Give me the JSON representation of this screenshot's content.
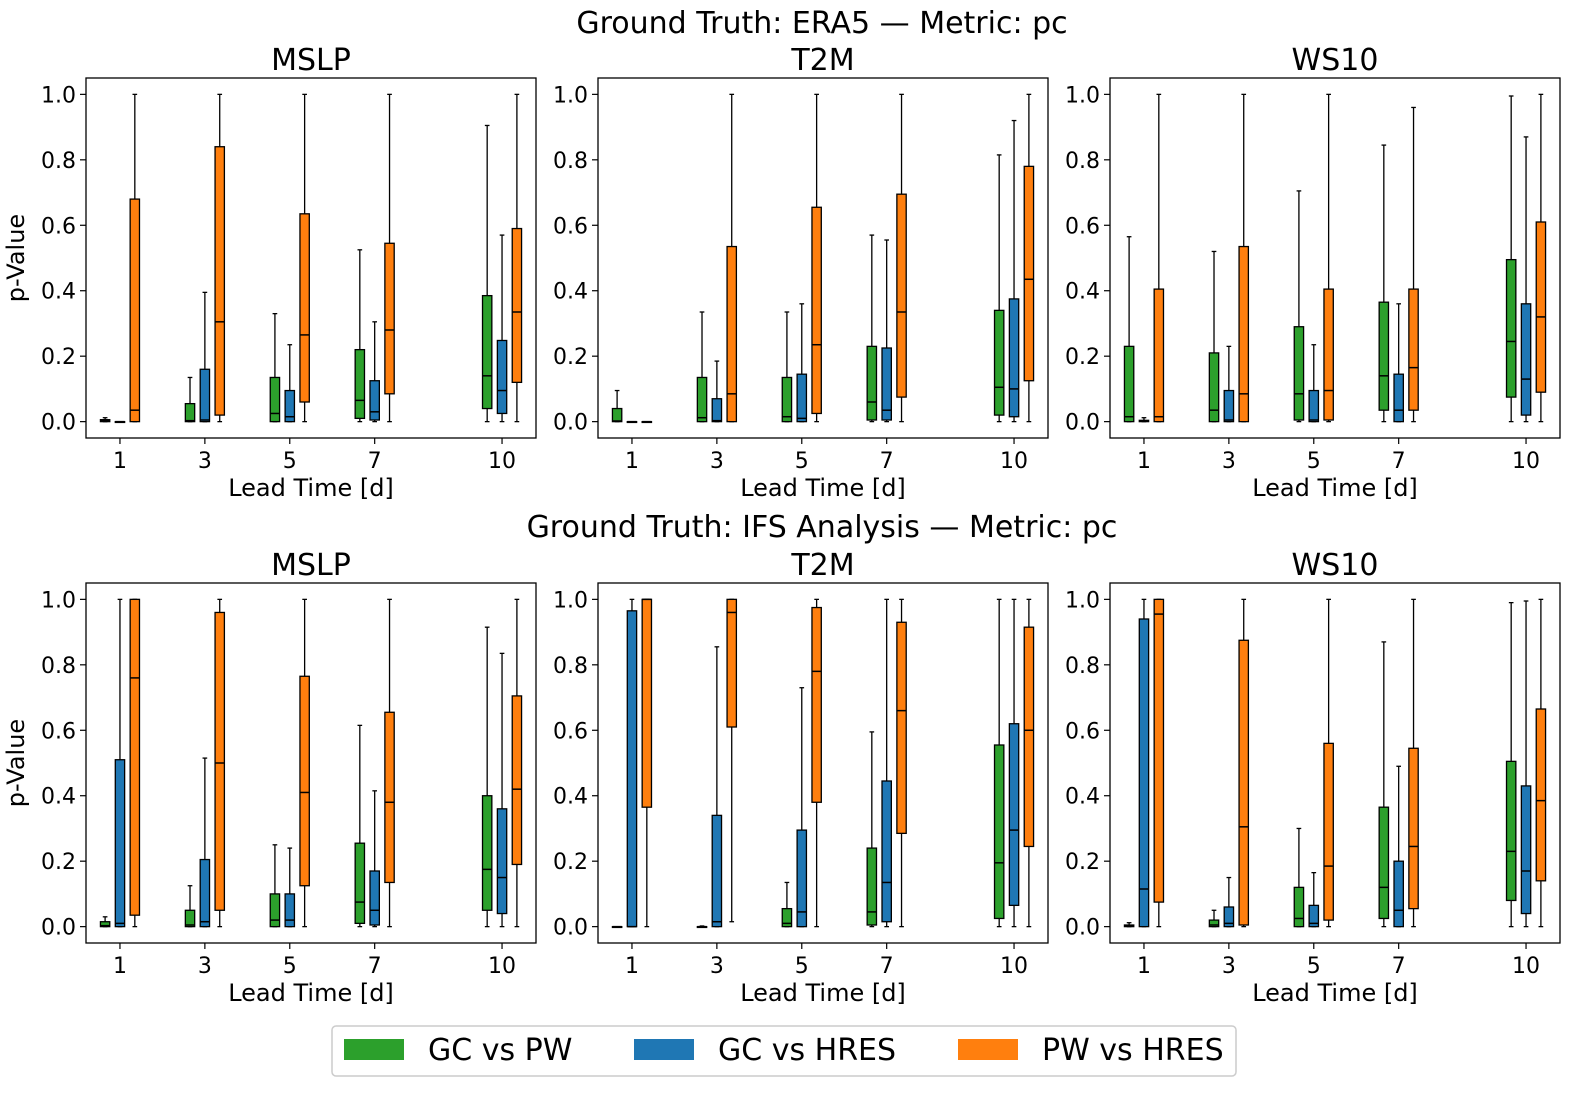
{
  "colors": {
    "GC vs PW": "#2ca02c",
    "GC vs HRES": "#1f77b4",
    "PW vs HRES": "#ff7f0e"
  },
  "legend": {
    "items": [
      "GC vs PW",
      "GC vs HRES",
      "PW vs HRES"
    ],
    "placement": "bottom-center"
  },
  "chart_data": [
    {
      "type": "box",
      "suptitle": "Ground Truth: ERA5 — Metric: pc",
      "title": "MSLP",
      "xlabel": "Lead Time [d]",
      "ylabel": "p-Value",
      "ylim": [
        -0.05,
        1.05
      ],
      "yticks": [
        "0.0",
        "0.2",
        "0.4",
        "0.6",
        "0.8",
        "1.0"
      ],
      "categories": [
        "1",
        "3",
        "5",
        "7",
        "10"
      ],
      "series": [
        {
          "name": "GC vs PW",
          "boxes": [
            {
              "whislo": 0,
              "q1": 0.0,
              "med": 0.003,
              "q3": 0.006,
              "whishi": 0.012
            },
            {
              "whislo": 0,
              "q1": 0.0,
              "med": 0.003,
              "q3": 0.055,
              "whishi": 0.135
            },
            {
              "whislo": 0,
              "q1": 0.0,
              "med": 0.025,
              "q3": 0.135,
              "whishi": 0.33
            },
            {
              "whislo": 0,
              "q1": 0.01,
              "med": 0.065,
              "q3": 0.22,
              "whishi": 0.525
            },
            {
              "whislo": 0,
              "q1": 0.04,
              "med": 0.14,
              "q3": 0.385,
              "whishi": 0.905
            }
          ]
        },
        {
          "name": "GC vs HRES",
          "boxes": [
            {
              "whislo": 0,
              "q1": 0.0,
              "med": 0.0,
              "q3": 0.0,
              "whishi": 0.0
            },
            {
              "whislo": 0,
              "q1": 0.0,
              "med": 0.005,
              "q3": 0.16,
              "whishi": 0.395
            },
            {
              "whislo": 0,
              "q1": 0.0,
              "med": 0.015,
              "q3": 0.095,
              "whishi": 0.235
            },
            {
              "whislo": 0,
              "q1": 0.005,
              "med": 0.03,
              "q3": 0.125,
              "whishi": 0.305
            },
            {
              "whislo": 0,
              "q1": 0.025,
              "med": 0.095,
              "q3": 0.248,
              "whishi": 0.57
            }
          ]
        },
        {
          "name": "PW vs HRES",
          "boxes": [
            {
              "whislo": 0,
              "q1": 0.0,
              "med": 0.035,
              "q3": 0.68,
              "whishi": 1.0
            },
            {
              "whislo": 0,
              "q1": 0.02,
              "med": 0.305,
              "q3": 0.84,
              "whishi": 1.0
            },
            {
              "whislo": 0,
              "q1": 0.06,
              "med": 0.265,
              "q3": 0.635,
              "whishi": 1.0
            },
            {
              "whislo": 0,
              "q1": 0.085,
              "med": 0.28,
              "q3": 0.545,
              "whishi": 1.0
            },
            {
              "whislo": 0,
              "q1": 0.12,
              "med": 0.335,
              "q3": 0.59,
              "whishi": 1.0
            }
          ]
        }
      ]
    },
    {
      "type": "box",
      "title": "T2M",
      "xlabel": "Lead Time [d]",
      "ylabel": "",
      "ylim": [
        -0.05,
        1.05
      ],
      "yticks": [
        "0.0",
        "0.2",
        "0.4",
        "0.6",
        "0.8",
        "1.0"
      ],
      "categories": [
        "1",
        "3",
        "5",
        "7",
        "10"
      ],
      "series": [
        {
          "name": "GC vs PW",
          "boxes": [
            {
              "whislo": 0,
              "q1": 0.0,
              "med": 0.002,
              "q3": 0.04,
              "whishi": 0.095
            },
            {
              "whislo": 0,
              "q1": 0.0,
              "med": 0.012,
              "q3": 0.135,
              "whishi": 0.335
            },
            {
              "whislo": 0,
              "q1": 0.0,
              "med": 0.015,
              "q3": 0.135,
              "whishi": 0.335
            },
            {
              "whislo": 0,
              "q1": 0.005,
              "med": 0.06,
              "q3": 0.23,
              "whishi": 0.57
            },
            {
              "whislo": 0,
              "q1": 0.02,
              "med": 0.105,
              "q3": 0.34,
              "whishi": 0.815
            }
          ]
        },
        {
          "name": "GC vs HRES",
          "boxes": [
            {
              "whislo": 0,
              "q1": 0.0,
              "med": 0.0,
              "q3": 0.0,
              "whishi": 0.0
            },
            {
              "whislo": 0,
              "q1": 0.0,
              "med": 0.003,
              "q3": 0.07,
              "whishi": 0.185
            },
            {
              "whislo": 0,
              "q1": 0.0,
              "med": 0.01,
              "q3": 0.145,
              "whishi": 0.36
            },
            {
              "whislo": 0,
              "q1": 0.005,
              "med": 0.035,
              "q3": 0.225,
              "whishi": 0.555
            },
            {
              "whislo": 0,
              "q1": 0.015,
              "med": 0.1,
              "q3": 0.375,
              "whishi": 0.92
            }
          ]
        },
        {
          "name": "PW vs HRES",
          "boxes": [
            {
              "whislo": 0,
              "q1": 0.0,
              "med": 0.0,
              "q3": 0.0,
              "whishi": 0.0
            },
            {
              "whislo": 0,
              "q1": 0.0,
              "med": 0.085,
              "q3": 0.535,
              "whishi": 1.0
            },
            {
              "whislo": 0,
              "q1": 0.025,
              "med": 0.235,
              "q3": 0.655,
              "whishi": 1.0
            },
            {
              "whislo": 0,
              "q1": 0.075,
              "med": 0.335,
              "q3": 0.695,
              "whishi": 1.0
            },
            {
              "whislo": 0,
              "q1": 0.125,
              "med": 0.435,
              "q3": 0.78,
              "whishi": 1.0
            }
          ]
        }
      ]
    },
    {
      "type": "box",
      "title": "WS10",
      "xlabel": "Lead Time [d]",
      "ylabel": "",
      "ylim": [
        -0.05,
        1.05
      ],
      "yticks": [
        "0.0",
        "0.2",
        "0.4",
        "0.6",
        "0.8",
        "1.0"
      ],
      "categories": [
        "1",
        "3",
        "5",
        "7",
        "10"
      ],
      "series": [
        {
          "name": "GC vs PW",
          "boxes": [
            {
              "whislo": 0,
              "q1": 0.0,
              "med": 0.015,
              "q3": 0.23,
              "whishi": 0.565
            },
            {
              "whislo": 0,
              "q1": 0.0,
              "med": 0.035,
              "q3": 0.21,
              "whishi": 0.52
            },
            {
              "whislo": 0,
              "q1": 0.005,
              "med": 0.085,
              "q3": 0.29,
              "whishi": 0.705
            },
            {
              "whislo": 0,
              "q1": 0.035,
              "med": 0.14,
              "q3": 0.365,
              "whishi": 0.845
            },
            {
              "whislo": 0,
              "q1": 0.075,
              "med": 0.245,
              "q3": 0.495,
              "whishi": 0.995
            }
          ]
        },
        {
          "name": "GC vs HRES",
          "boxes": [
            {
              "whislo": 0,
              "q1": 0.0,
              "med": 0.002,
              "q3": 0.004,
              "whishi": 0.012
            },
            {
              "whislo": 0,
              "q1": 0.0,
              "med": 0.005,
              "q3": 0.095,
              "whishi": 0.23
            },
            {
              "whislo": 0,
              "q1": 0.0,
              "med": 0.005,
              "q3": 0.095,
              "whishi": 0.235
            },
            {
              "whislo": 0,
              "q1": 0.0,
              "med": 0.035,
              "q3": 0.145,
              "whishi": 0.36
            },
            {
              "whislo": 0,
              "q1": 0.02,
              "med": 0.13,
              "q3": 0.36,
              "whishi": 0.87
            }
          ]
        },
        {
          "name": "PW vs HRES",
          "boxes": [
            {
              "whislo": 0,
              "q1": 0.0,
              "med": 0.015,
              "q3": 0.405,
              "whishi": 1.0
            },
            {
              "whislo": 0,
              "q1": 0.0,
              "med": 0.085,
              "q3": 0.535,
              "whishi": 1.0
            },
            {
              "whislo": 0,
              "q1": 0.005,
              "med": 0.095,
              "q3": 0.405,
              "whishi": 1.0
            },
            {
              "whislo": 0,
              "q1": 0.035,
              "med": 0.165,
              "q3": 0.405,
              "whishi": 0.96
            },
            {
              "whislo": 0,
              "q1": 0.09,
              "med": 0.32,
              "q3": 0.61,
              "whishi": 1.0
            }
          ]
        }
      ]
    },
    {
      "type": "box",
      "suptitle": "Ground Truth: IFS Analysis — Metric: pc",
      "title": "MSLP",
      "xlabel": "Lead Time [d]",
      "ylabel": "p-Value",
      "ylim": [
        -0.05,
        1.05
      ],
      "yticks": [
        "0.0",
        "0.2",
        "0.4",
        "0.6",
        "0.8",
        "1.0"
      ],
      "categories": [
        "1",
        "3",
        "5",
        "7",
        "10"
      ],
      "series": [
        {
          "name": "GC vs PW",
          "boxes": [
            {
              "whislo": 0,
              "q1": 0.0,
              "med": 0.003,
              "q3": 0.015,
              "whishi": 0.03
            },
            {
              "whislo": 0,
              "q1": 0.0,
              "med": 0.005,
              "q3": 0.05,
              "whishi": 0.125
            },
            {
              "whislo": 0,
              "q1": 0.0,
              "med": 0.02,
              "q3": 0.1,
              "whishi": 0.25
            },
            {
              "whislo": 0,
              "q1": 0.01,
              "med": 0.075,
              "q3": 0.255,
              "whishi": 0.615
            },
            {
              "whislo": 0,
              "q1": 0.05,
              "med": 0.175,
              "q3": 0.4,
              "whishi": 0.915
            }
          ]
        },
        {
          "name": "GC vs HRES",
          "boxes": [
            {
              "whislo": 0,
              "q1": 0.0,
              "med": 0.01,
              "q3": 0.51,
              "whishi": 1.0
            },
            {
              "whislo": 0,
              "q1": 0.0,
              "med": 0.015,
              "q3": 0.205,
              "whishi": 0.515
            },
            {
              "whislo": 0,
              "q1": 0.0,
              "med": 0.02,
              "q3": 0.1,
              "whishi": 0.24
            },
            {
              "whislo": 0,
              "q1": 0.005,
              "med": 0.05,
              "q3": 0.17,
              "whishi": 0.415
            },
            {
              "whislo": 0,
              "q1": 0.04,
              "med": 0.15,
              "q3": 0.36,
              "whishi": 0.835
            }
          ]
        },
        {
          "name": "PW vs HRES",
          "boxes": [
            {
              "whislo": 0,
              "q1": 0.035,
              "med": 0.76,
              "q3": 1.0,
              "whishi": 1.0
            },
            {
              "whislo": 0,
              "q1": 0.05,
              "med": 0.5,
              "q3": 0.96,
              "whishi": 1.0
            },
            {
              "whislo": 0,
              "q1": 0.125,
              "med": 0.41,
              "q3": 0.765,
              "whishi": 1.0
            },
            {
              "whislo": 0,
              "q1": 0.135,
              "med": 0.38,
              "q3": 0.655,
              "whishi": 1.0
            },
            {
              "whislo": 0,
              "q1": 0.19,
              "med": 0.42,
              "q3": 0.705,
              "whishi": 1.0
            }
          ]
        }
      ]
    },
    {
      "type": "box",
      "title": "T2M",
      "xlabel": "Lead Time [d]",
      "ylabel": "",
      "ylim": [
        -0.05,
        1.05
      ],
      "yticks": [
        "0.0",
        "0.2",
        "0.4",
        "0.6",
        "0.8",
        "1.0"
      ],
      "categories": [
        "1",
        "3",
        "5",
        "7",
        "10"
      ],
      "series": [
        {
          "name": "GC vs PW",
          "boxes": [
            {
              "whislo": 0,
              "q1": 0.0,
              "med": 0.0,
              "q3": 0.0,
              "whishi": 0.0
            },
            {
              "whislo": 0,
              "q1": 0.0,
              "med": 0.0,
              "q3": 0.0,
              "whishi": 0.002
            },
            {
              "whislo": 0,
              "q1": 0.0,
              "med": 0.01,
              "q3": 0.055,
              "whishi": 0.135
            },
            {
              "whislo": 0,
              "q1": 0.005,
              "med": 0.045,
              "q3": 0.24,
              "whishi": 0.595
            },
            {
              "whislo": 0,
              "q1": 0.025,
              "med": 0.195,
              "q3": 0.555,
              "whishi": 1.0
            }
          ]
        },
        {
          "name": "GC vs HRES",
          "boxes": [
            {
              "whislo": 0,
              "q1": 0.0,
              "med": 0.0,
              "q3": 0.965,
              "whishi": 1.0
            },
            {
              "whislo": 0,
              "q1": 0.0,
              "med": 0.015,
              "q3": 0.34,
              "whishi": 0.855
            },
            {
              "whislo": 0,
              "q1": 0.0,
              "med": 0.045,
              "q3": 0.295,
              "whishi": 0.73
            },
            {
              "whislo": 0,
              "q1": 0.015,
              "med": 0.135,
              "q3": 0.445,
              "whishi": 1.0
            },
            {
              "whislo": 0,
              "q1": 0.065,
              "med": 0.295,
              "q3": 0.62,
              "whishi": 1.0
            }
          ]
        },
        {
          "name": "PW vs HRES",
          "boxes": [
            {
              "whislo": 0,
              "q1": 0.365,
              "med": 1.0,
              "q3": 1.0,
              "whishi": 1.0
            },
            {
              "whislo": 0.015,
              "q1": 0.61,
              "med": 0.96,
              "q3": 1.0,
              "whishi": 1.0
            },
            {
              "whislo": 0,
              "q1": 0.38,
              "med": 0.78,
              "q3": 0.975,
              "whishi": 1.0
            },
            {
              "whislo": 0,
              "q1": 0.285,
              "med": 0.66,
              "q3": 0.93,
              "whishi": 1.0
            },
            {
              "whislo": 0,
              "q1": 0.245,
              "med": 0.6,
              "q3": 0.915,
              "whishi": 1.0
            }
          ]
        }
      ]
    },
    {
      "type": "box",
      "title": "WS10",
      "xlabel": "Lead Time [d]",
      "ylabel": "",
      "ylim": [
        -0.05,
        1.05
      ],
      "yticks": [
        "0.0",
        "0.2",
        "0.4",
        "0.6",
        "0.8",
        "1.0"
      ],
      "categories": [
        "1",
        "3",
        "5",
        "7",
        "10"
      ],
      "series": [
        {
          "name": "GC vs PW",
          "boxes": [
            {
              "whislo": 0,
              "q1": 0.0,
              "med": 0.002,
              "q3": 0.005,
              "whishi": 0.012
            },
            {
              "whislo": 0,
              "q1": 0.0,
              "med": 0.005,
              "q3": 0.02,
              "whishi": 0.05
            },
            {
              "whislo": 0,
              "q1": 0.0,
              "med": 0.025,
              "q3": 0.12,
              "whishi": 0.3
            },
            {
              "whislo": 0,
              "q1": 0.025,
              "med": 0.12,
              "q3": 0.365,
              "whishi": 0.87
            },
            {
              "whislo": 0,
              "q1": 0.08,
              "med": 0.23,
              "q3": 0.505,
              "whishi": 0.99
            }
          ]
        },
        {
          "name": "GC vs HRES",
          "boxes": [
            {
              "whislo": 0,
              "q1": 0.0,
              "med": 0.115,
              "q3": 0.94,
              "whishi": 1.0
            },
            {
              "whislo": 0,
              "q1": 0.0,
              "med": 0.01,
              "q3": 0.06,
              "whishi": 0.15
            },
            {
              "whislo": 0,
              "q1": 0.0,
              "med": 0.01,
              "q3": 0.065,
              "whishi": 0.165
            },
            {
              "whislo": 0,
              "q1": 0.0,
              "med": 0.05,
              "q3": 0.2,
              "whishi": 0.49
            },
            {
              "whislo": 0,
              "q1": 0.04,
              "med": 0.17,
              "q3": 0.43,
              "whishi": 0.995
            }
          ]
        },
        {
          "name": "PW vs HRES",
          "boxes": [
            {
              "whislo": 0,
              "q1": 0.075,
              "med": 0.955,
              "q3": 1.0,
              "whishi": 1.0
            },
            {
              "whislo": 0,
              "q1": 0.005,
              "med": 0.305,
              "q3": 0.875,
              "whishi": 1.0
            },
            {
              "whislo": 0,
              "q1": 0.02,
              "med": 0.185,
              "q3": 0.56,
              "whishi": 1.0
            },
            {
              "whislo": 0,
              "q1": 0.055,
              "med": 0.245,
              "q3": 0.545,
              "whishi": 1.0
            },
            {
              "whislo": 0,
              "q1": 0.14,
              "med": 0.385,
              "q3": 0.665,
              "whishi": 1.0
            }
          ]
        }
      ]
    }
  ]
}
